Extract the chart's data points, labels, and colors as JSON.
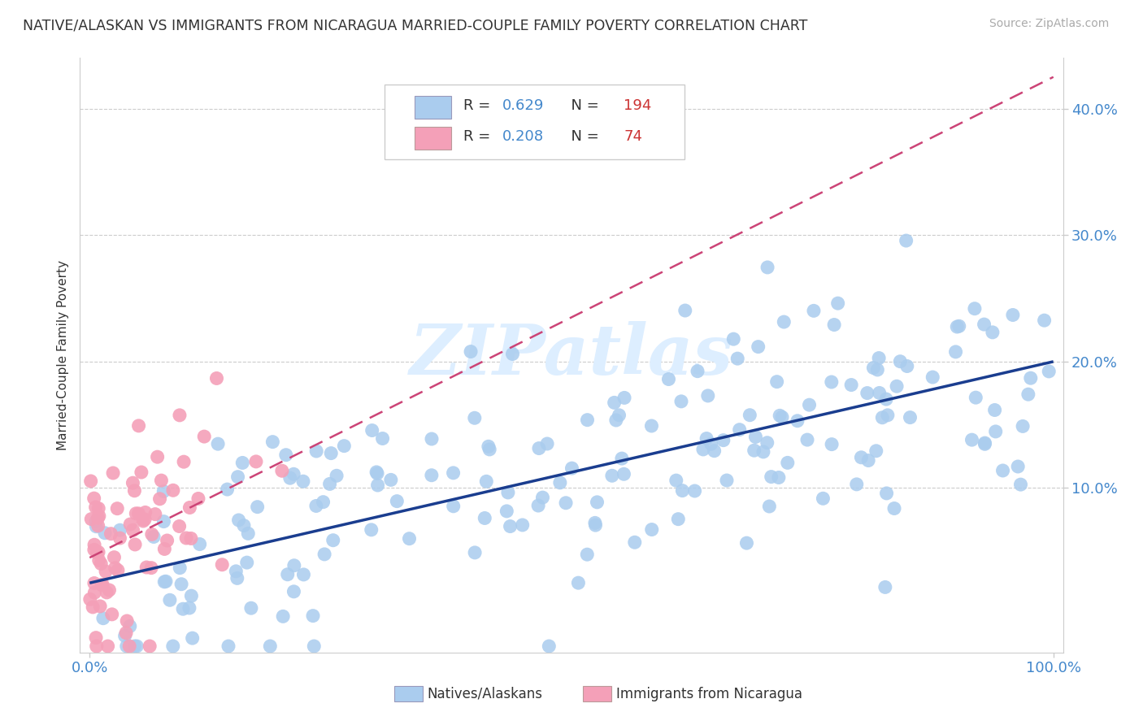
{
  "title": "NATIVE/ALASKAN VS IMMIGRANTS FROM NICARAGUA MARRIED-COUPLE FAMILY POVERTY CORRELATION CHART",
  "source": "Source: ZipAtlas.com",
  "ylabel": "Married-Couple Family Poverty",
  "R_blue": 0.629,
  "N_blue": 194,
  "R_pink": 0.208,
  "N_pink": 74,
  "blue_scatter_color": "#aaccee",
  "blue_line_color": "#1a3d8f",
  "pink_scatter_color": "#f4a0b8",
  "pink_line_color": "#cc4477",
  "background_color": "#ffffff",
  "grid_color": "#cccccc",
  "watermark_color": "#ddeeff",
  "title_color": "#333333",
  "tick_color": "#4488cc",
  "source_color": "#aaaaaa",
  "legend_R_color": "#4488cc",
  "legend_N_color": "#cc3333",
  "legend_text_color": "#333333",
  "legend_label_blue": "Natives/Alaskans",
  "legend_label_pink": "Immigrants from Nicaragua",
  "ylim_low": -0.03,
  "ylim_high": 0.44,
  "blue_slope": 0.175,
  "blue_intercept": 0.025,
  "pink_slope": 0.38,
  "pink_intercept": 0.045
}
